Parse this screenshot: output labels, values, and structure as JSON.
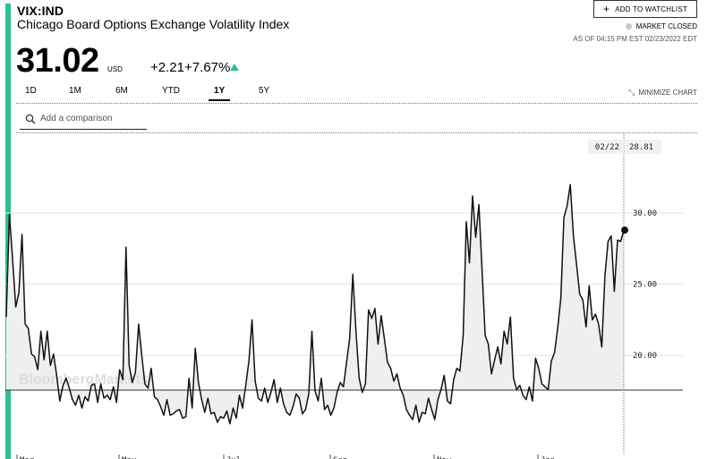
{
  "header": {
    "ticker": "VIX:IND",
    "name": "Chicago Board Options Exchange Volatility Index",
    "price": "31.02",
    "currency": "USD",
    "change": "+2.21",
    "change_pct": "+7.67%",
    "watchlist_label": "ADD TO WATCHLIST",
    "market_status": "MARKET CLOSED",
    "as_of": "AS OF 04:15 PM EST 02/23/2022 EDT",
    "accent_color": "#2cc28a"
  },
  "controls": {
    "timeframes": [
      "1D",
      "1M",
      "6M",
      "YTD",
      "1Y",
      "5Y"
    ],
    "active_timeframe": "1Y",
    "minimize_label": "MINIMIZE CHART",
    "search_placeholder": "Add a comparison"
  },
  "chart": {
    "watermark": "BloombergMarkets",
    "hover_date": "02/22",
    "hover_value": "28.81"
  },
  "chart_data": {
    "type": "line",
    "title": "",
    "xlabel": "",
    "ylabel": "",
    "x_ticks": [
      "Mar",
      "May",
      "Jul",
      "Sep",
      "Nov",
      "Jan"
    ],
    "y_ticks": [
      20.0,
      25.0,
      30.0
    ],
    "ylim": [
      13.04,
      34.72
    ],
    "grid": true,
    "series": [
      {
        "values": [
          22.7,
          29.9,
          26.8,
          23.4,
          24.4,
          28.5,
          22.2,
          21.9,
          20.1,
          19.9,
          19.0,
          21.7,
          19.7,
          21.7,
          19.3,
          20.1,
          18.6,
          16.8,
          17.9,
          18.4,
          17.7,
          16.9,
          16.5,
          17.2,
          16.3,
          17.1,
          16.8,
          17.9,
          18.0,
          16.7,
          18.0,
          17.0,
          17.2,
          16.9,
          17.8,
          16.7,
          19.0,
          18.3,
          27.6,
          19.3,
          18.1,
          18.8,
          22.2,
          20.0,
          18.0,
          17.7,
          19.1,
          17.1,
          16.9,
          16.4,
          15.8,
          16.9,
          15.8,
          15.9,
          16.1,
          16.2,
          15.6,
          15.7,
          18.4,
          16.3,
          20.5,
          18.1,
          16.9,
          16.0,
          17.0,
          15.9,
          16.0,
          15.3,
          15.7,
          15.6,
          16.1,
          15.2,
          16.3,
          15.6,
          17.2,
          16.3,
          17.9,
          19.6,
          22.5,
          18.2,
          17.0,
          16.8,
          17.7,
          16.7,
          17.4,
          18.3,
          16.7,
          17.7,
          16.6,
          16.0,
          15.8,
          16.4,
          17.3,
          17.0,
          15.9,
          16.2,
          17.3,
          21.7,
          17.5,
          16.8,
          18.4,
          16.2,
          16.5,
          15.8,
          16.3,
          17.4,
          18.1,
          17.8,
          19.5,
          21.2,
          25.7,
          21.6,
          18.4,
          17.4,
          18.0,
          23.2,
          22.6,
          23.3,
          20.8,
          22.8,
          21.2,
          19.5,
          19.1,
          18.2,
          18.7,
          17.7,
          17.2,
          16.2,
          15.8,
          15.5,
          16.5,
          15.3,
          16.0,
          15.9,
          17.0,
          16.2,
          15.5,
          16.9,
          17.6,
          18.6,
          16.8,
          16.6,
          18.3,
          19.1,
          18.9,
          21.4,
          29.4,
          26.5,
          31.2,
          28.3,
          30.6,
          26.0,
          21.4,
          20.8,
          18.7,
          19.7,
          20.6,
          19.4,
          21.7,
          20.8,
          22.7,
          18.4,
          17.6,
          17.9,
          17.2,
          16.9,
          17.8,
          16.8,
          19.8,
          19.1,
          18.0,
          17.8,
          17.6,
          19.6,
          20.2,
          21.9,
          24.0,
          29.7,
          30.5,
          32.0,
          28.4,
          26.4,
          24.3,
          23.9,
          22.0,
          24.9,
          22.5,
          22.9,
          22.2,
          20.6,
          25.6,
          28.0,
          28.4,
          24.5,
          28.1,
          28.0,
          28.8
        ]
      }
    ]
  }
}
